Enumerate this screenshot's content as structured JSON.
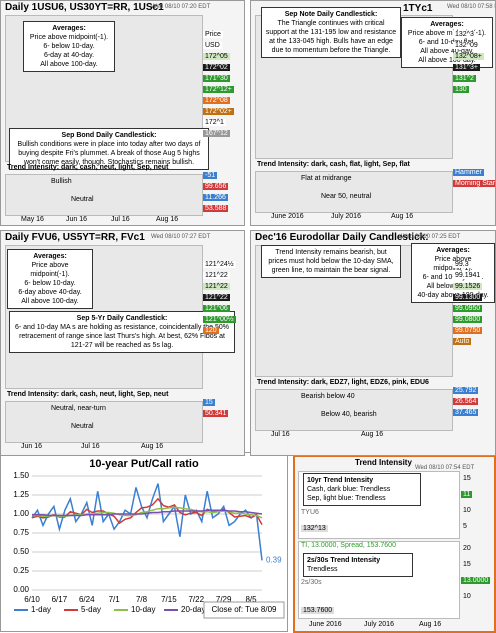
{
  "panels": [
    {
      "title": "Daily 1USU6, US30YT=RR, 1USc1",
      "timestamp": "Wed 08/10 07:20 EDT",
      "averages": [
        "Averages:",
        "Price above midpoint(-1).",
        "6- below 10-day.",
        "6-day at 40-day.",
        "All above 100-day."
      ],
      "note_title": "Sep Bond Daily Candlestick:",
      "note": "Bullish conditions were in place into today after two days of buying despite Fri's plummet. A break of those Aug 5 highs won't come easily, though. Stochastics remains bullish.",
      "price_labels": [
        "Price",
        "USD",
        "172^05",
        "172^02",
        "171^30",
        "172^12+",
        "172^08",
        "172^02+",
        "172^1",
        "167^12"
      ],
      "trend": "Trend Intensity: dark, cash, neut, light, Sep, neut",
      "trend_notes": [
        "Bullish",
        "Neutral"
      ],
      "side_values": [
        "-51",
        "99.656",
        "11.266",
        "53.588"
      ],
      "x_labels": [
        "May 16",
        "Jun 16",
        "Jul 16",
        "Aug 16"
      ]
    },
    {
      "title": "1TYc1",
      "timestamp": "Wed 08/10 07:58 EDT",
      "averages": [
        "Averages:",
        "Price above midpoint(-1).",
        "6- and 10-day flat.",
        "All above 40-day.",
        "All above 100-day."
      ],
      "note_title": "Sep Note Daily Candlestick:",
      "note": "The Triangle continues with critical support at the 131-195 low and resistance at the 133-045 high. Bulls have an edge due to momentum before the Triangle.",
      "price_labels": [
        "132^3",
        "132^09",
        "132^08+",
        "131^3+",
        "131^2",
        "130"
      ],
      "trend": "Trend Intensity: dark, cash, flat, light, Sep, flat",
      "trend_notes": [
        "Flat at midrange",
        "Near 50, neutral"
      ],
      "side_values": [
        "Hammer",
        "Morning Star"
      ],
      "x_labels": [
        "June 2016",
        "July 2016",
        "Aug 16"
      ]
    },
    {
      "title": "Daily FVU6, US5YT=RR, FVc1",
      "timestamp": "Wed 08/10 07:27 EDT",
      "averages": [
        "Averages:",
        "Price above midpoint(-1).",
        "6- below 10-day.",
        "6-day above 40-day.",
        "All above 100-day."
      ],
      "note_title": "Sep 5-Yr Daily Candlestick:",
      "note": "6- and 10-day MA s are holding as resistance, coincidentally the 50% retracement of range since last Thurs's high. At best, 62% Fibos at 121-27 will be reached as 5s lag.",
      "price_labels": [
        "121^24½",
        "121^22",
        "121^22",
        "121^22",
        "121^06",
        "121^00½",
        "120"
      ],
      "trend": "Trend Intensity: dark, cash, neut, light, Sep, neut",
      "trend_notes": [
        "Neutral, near-turn",
        "Neutral"
      ],
      "side_values": [
        "15",
        "50.341"
      ],
      "x_labels": [
        "Jun 16",
        "Jul 16",
        "Aug 16"
      ]
    },
    {
      "title": "Dec'16 Eurodollar Daily Candlestick:",
      "timestamp": "Wed 08/10 07:25 EDT",
      "averages": [
        "Averages:",
        "Price above midpoint(-1).",
        "6- and 10-day bear.",
        "All below 40-day.",
        "40-day above 100-day."
      ],
      "note_title": "",
      "note": "Trend Intensity remains bearish, but prices must hold below the 10-day SMA, green line, to maintain the bear signal.",
      "price_labels": [
        "99.3",
        "99.1941",
        "99.1526",
        "99.1300",
        "99.0950",
        "99.0800",
        "99.0750",
        "Auto"
      ],
      "trend": "Trend Intensity: dark, EDZ7, light, EDZ6, pink, EDU6",
      "trend_notes": [
        "Bearish below 40",
        "Below 40, bearish"
      ],
      "side_values": [
        "25.792",
        "26.564",
        "37.465"
      ],
      "x_labels": [
        "Jul 16",
        "Aug 16"
      ]
    }
  ],
  "chart_data": {
    "type": "line",
    "title": "10-year Put/Call ratio",
    "categories": [
      "6/10",
      null,
      null,
      null,
      null,
      "6/17",
      null,
      null,
      null,
      null,
      "6/24",
      null,
      null,
      null,
      null,
      "7/1",
      null,
      null,
      null,
      null,
      "7/8",
      null,
      null,
      null,
      null,
      "7/15",
      null,
      null,
      null,
      null,
      "7/22",
      null,
      null,
      null,
      null,
      "7/29",
      null,
      null,
      null,
      null,
      "8/5",
      null,
      null
    ],
    "series": [
      {
        "name": "1-day",
        "color": "#3a7fd0",
        "values": [
          0.95,
          1.05,
          0.85,
          1.0,
          1.1,
          0.8,
          1.05,
          1.2,
          0.9,
          1.0,
          1.15,
          0.85,
          1.3,
          0.9,
          1.0,
          0.8,
          0.9,
          1.05,
          1.0,
          1.35,
          1.1,
          0.95,
          1.2,
          1.4,
          0.9,
          1.0,
          1.1,
          0.7,
          1.25,
          1.0,
          1.05,
          0.9,
          1.3,
          0.95,
          1.0,
          1.1,
          0.85,
          0.9,
          1.0,
          1.05,
          0.95,
          1.0,
          0.39
        ]
      },
      {
        "name": "5-day",
        "color": "#d03a3a",
        "values": [
          0.95,
          0.97,
          0.95,
          0.96,
          0.99,
          0.96,
          0.96,
          1.03,
          1.01,
          0.99,
          1.06,
          1.02,
          1.04,
          1.04,
          1.0,
          0.97,
          0.88,
          0.93,
          0.95,
          1.02,
          1.08,
          1.09,
          1.12,
          1.2,
          1.11,
          1.09,
          1.12,
          1.02,
          0.99,
          1.01,
          1.02,
          0.98,
          1.06,
          1.04,
          1.04,
          1.06,
          1.02,
          0.96,
          0.97,
          0.98,
          0.95,
          0.99,
          0.86
        ]
      },
      {
        "name": "10-day",
        "color": "#8cc04a",
        "values": [
          0.98,
          0.98,
          0.97,
          0.97,
          0.98,
          0.97,
          0.97,
          0.98,
          0.99,
          0.99,
          1.0,
          1.0,
          1.01,
          1.02,
          1.02,
          1.01,
          0.99,
          0.98,
          0.98,
          0.99,
          1.02,
          1.03,
          1.05,
          1.07,
          1.07,
          1.08,
          1.09,
          1.08,
          1.07,
          1.06,
          1.04,
          1.03,
          1.03,
          1.02,
          1.03,
          1.04,
          1.03,
          1.01,
          1.01,
          1.0,
          0.99,
          0.98,
          0.95
        ]
      },
      {
        "name": "20-day",
        "color": "#7a4fb0",
        "values": [
          0.99,
          0.99,
          0.99,
          0.98,
          0.98,
          0.98,
          0.98,
          0.98,
          0.98,
          0.98,
          0.99,
          0.99,
          0.99,
          0.99,
          0.99,
          1.0,
          1.0,
          1.0,
          1.0,
          1.0,
          1.0,
          1.01,
          1.02,
          1.02,
          1.03,
          1.03,
          1.04,
          1.04,
          1.04,
          1.04,
          1.04,
          1.04,
          1.05,
          1.05,
          1.05,
          1.05,
          1.04,
          1.04,
          1.03,
          1.03,
          1.02,
          1.01,
          1.0
        ]
      }
    ],
    "value_labels": [
      "0.39"
    ],
    "ylim": [
      0,
      1.5
    ],
    "yticks": [
      {
        "value": 0,
        "label": "0.00"
      },
      {
        "value": 0.25,
        "label": "0.25"
      },
      {
        "value": 0.5,
        "label": "0.50"
      },
      {
        "value": 0.75,
        "label": "0.75"
      },
      {
        "value": 1,
        "label": "1.00"
      },
      {
        "value": 1.25,
        "label": "1.25"
      },
      {
        "value": 1.5,
        "label": "1.50"
      }
    ],
    "grid": true,
    "legend": "bottom",
    "note": "Close of: Tue 8/09"
  },
  "trend_panel": {
    "title": "Trend Intensity",
    "timestamp": "Wed 08/10 07:54 EDT",
    "top": {
      "title": "10yr Trend Intensity",
      "lines": [
        "Cash, dark blue: Trendless",
        "Sep, light blue: Trendless"
      ],
      "symbol": "TYU6",
      "price": "132^13",
      "ticks": [
        "15",
        "11",
        "10",
        "5"
      ]
    },
    "bottom": {
      "header": "TI, 13.0000, Spread, 153.7600",
      "title": "2s/30s Trend Intensity",
      "lines": [
        "Trendless"
      ],
      "symbol": "2s/30s",
      "price": "153.7600",
      "ticks": [
        "20",
        "15",
        "13.0000",
        "10"
      ]
    },
    "x_labels": [
      "June 2016",
      "July 2016",
      "Aug 16"
    ]
  }
}
